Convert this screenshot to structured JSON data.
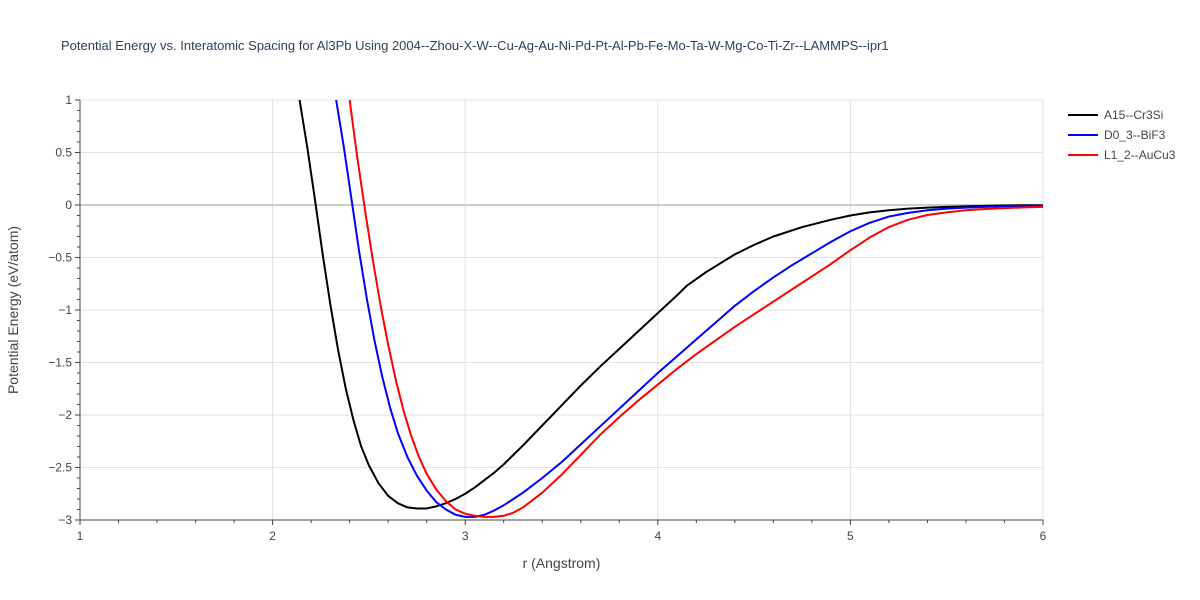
{
  "chart_data": {
    "type": "line",
    "title": "Potential Energy vs. Interatomic Spacing for Al3Pb Using 2004--Zhou-X-W--Cu-Ag-Au-Ni-Pd-Pt-Al-Pb-Fe-Mo-Ta-W-Mg-Co-Ti-Zr--LAMMPS--ipr1",
    "xlabel": "r (Angstrom)",
    "ylabel": "Potential Energy (eV/atom)",
    "xlim": [
      1,
      6
    ],
    "ylim": [
      -3,
      1
    ],
    "xticks": [
      1,
      2,
      3,
      4,
      5,
      6
    ],
    "xtick_labels": [
      "1",
      "2",
      "3",
      "4",
      "5",
      "6"
    ],
    "yticks": [
      1,
      0.5,
      0,
      -0.5,
      -1,
      -1.5,
      -2,
      -2.5,
      -3
    ],
    "ytick_labels": [
      "1",
      "0.5",
      "0",
      "−0.5",
      "−1",
      "−1.5",
      "−2",
      "−2.5",
      "−3"
    ],
    "grid": true,
    "legend_position": "top-right",
    "series": [
      {
        "name": "A15--Cr3Si",
        "color": "#000000",
        "x": [
          2.14,
          2.18,
          2.22,
          2.26,
          2.3,
          2.34,
          2.38,
          2.42,
          2.46,
          2.5,
          2.55,
          2.6,
          2.65,
          2.7,
          2.75,
          2.8,
          2.85,
          2.9,
          2.95,
          3.0,
          3.05,
          3.1,
          3.15,
          3.2,
          3.25,
          3.3,
          3.4,
          3.5,
          3.6,
          3.7,
          3.8,
          3.9,
          4.0,
          4.1,
          4.15,
          4.25,
          4.4,
          4.5,
          4.6,
          4.75,
          4.9,
          5.0,
          5.1,
          5.2,
          5.3,
          5.4,
          5.5,
          5.6,
          5.7,
          5.8,
          5.9,
          6.0
        ],
        "y": [
          1.0,
          0.55,
          0.05,
          -0.47,
          -0.95,
          -1.38,
          -1.75,
          -2.05,
          -2.3,
          -2.48,
          -2.65,
          -2.77,
          -2.84,
          -2.88,
          -2.89,
          -2.89,
          -2.87,
          -2.84,
          -2.8,
          -2.75,
          -2.69,
          -2.62,
          -2.55,
          -2.47,
          -2.38,
          -2.29,
          -2.1,
          -1.91,
          -1.72,
          -1.54,
          -1.37,
          -1.2,
          -1.03,
          -0.86,
          -0.77,
          -0.64,
          -0.47,
          -0.38,
          -0.3,
          -0.21,
          -0.14,
          -0.1,
          -0.07,
          -0.05,
          -0.035,
          -0.025,
          -0.018,
          -0.012,
          -0.008,
          -0.005,
          -0.003,
          -0.002
        ]
      },
      {
        "name": "D0_3--BiF3",
        "color": "#0000ff",
        "x": [
          2.33,
          2.37,
          2.41,
          2.45,
          2.49,
          2.53,
          2.57,
          2.61,
          2.65,
          2.7,
          2.75,
          2.8,
          2.85,
          2.9,
          2.95,
          3.0,
          3.05,
          3.1,
          3.15,
          3.2,
          3.3,
          3.4,
          3.5,
          3.6,
          3.7,
          3.8,
          3.9,
          4.0,
          4.1,
          4.2,
          4.3,
          4.4,
          4.5,
          4.6,
          4.7,
          4.8,
          4.9,
          5.0,
          5.1,
          5.2,
          5.3,
          5.4,
          5.5,
          5.6,
          5.7,
          5.8,
          5.9,
          6.0
        ],
        "y": [
          1.0,
          0.55,
          0.05,
          -0.45,
          -0.9,
          -1.3,
          -1.64,
          -1.93,
          -2.17,
          -2.4,
          -2.58,
          -2.72,
          -2.83,
          -2.9,
          -2.95,
          -2.97,
          -2.97,
          -2.95,
          -2.91,
          -2.86,
          -2.74,
          -2.6,
          -2.45,
          -2.28,
          -2.11,
          -1.94,
          -1.77,
          -1.6,
          -1.44,
          -1.28,
          -1.12,
          -0.96,
          -0.82,
          -0.69,
          -0.57,
          -0.46,
          -0.35,
          -0.25,
          -0.17,
          -0.11,
          -0.075,
          -0.05,
          -0.035,
          -0.025,
          -0.018,
          -0.012,
          -0.008,
          -0.005
        ]
      },
      {
        "name": "L1_2--AuCu3",
        "color": "#ff0000",
        "x": [
          2.4,
          2.44,
          2.48,
          2.52,
          2.56,
          2.6,
          2.64,
          2.68,
          2.72,
          2.76,
          2.8,
          2.85,
          2.9,
          2.95,
          3.0,
          3.05,
          3.1,
          3.15,
          3.2,
          3.25,
          3.3,
          3.4,
          3.5,
          3.6,
          3.7,
          3.8,
          3.9,
          4.0,
          4.1,
          4.2,
          4.3,
          4.4,
          4.5,
          4.6,
          4.7,
          4.8,
          4.9,
          5.0,
          5.1,
          5.2,
          5.3,
          5.4,
          5.5,
          5.6,
          5.7,
          5.8,
          5.9,
          6.0
        ],
        "y": [
          1.0,
          0.45,
          -0.05,
          -0.52,
          -0.95,
          -1.33,
          -1.67,
          -1.96,
          -2.2,
          -2.4,
          -2.56,
          -2.71,
          -2.82,
          -2.9,
          -2.94,
          -2.96,
          -2.97,
          -2.97,
          -2.96,
          -2.93,
          -2.88,
          -2.74,
          -2.57,
          -2.38,
          -2.19,
          -2.02,
          -1.86,
          -1.71,
          -1.56,
          -1.42,
          -1.29,
          -1.16,
          -1.04,
          -0.92,
          -0.8,
          -0.68,
          -0.56,
          -0.43,
          -0.31,
          -0.21,
          -0.14,
          -0.095,
          -0.07,
          -0.05,
          -0.038,
          -0.03,
          -0.023,
          -0.018
        ]
      }
    ]
  }
}
